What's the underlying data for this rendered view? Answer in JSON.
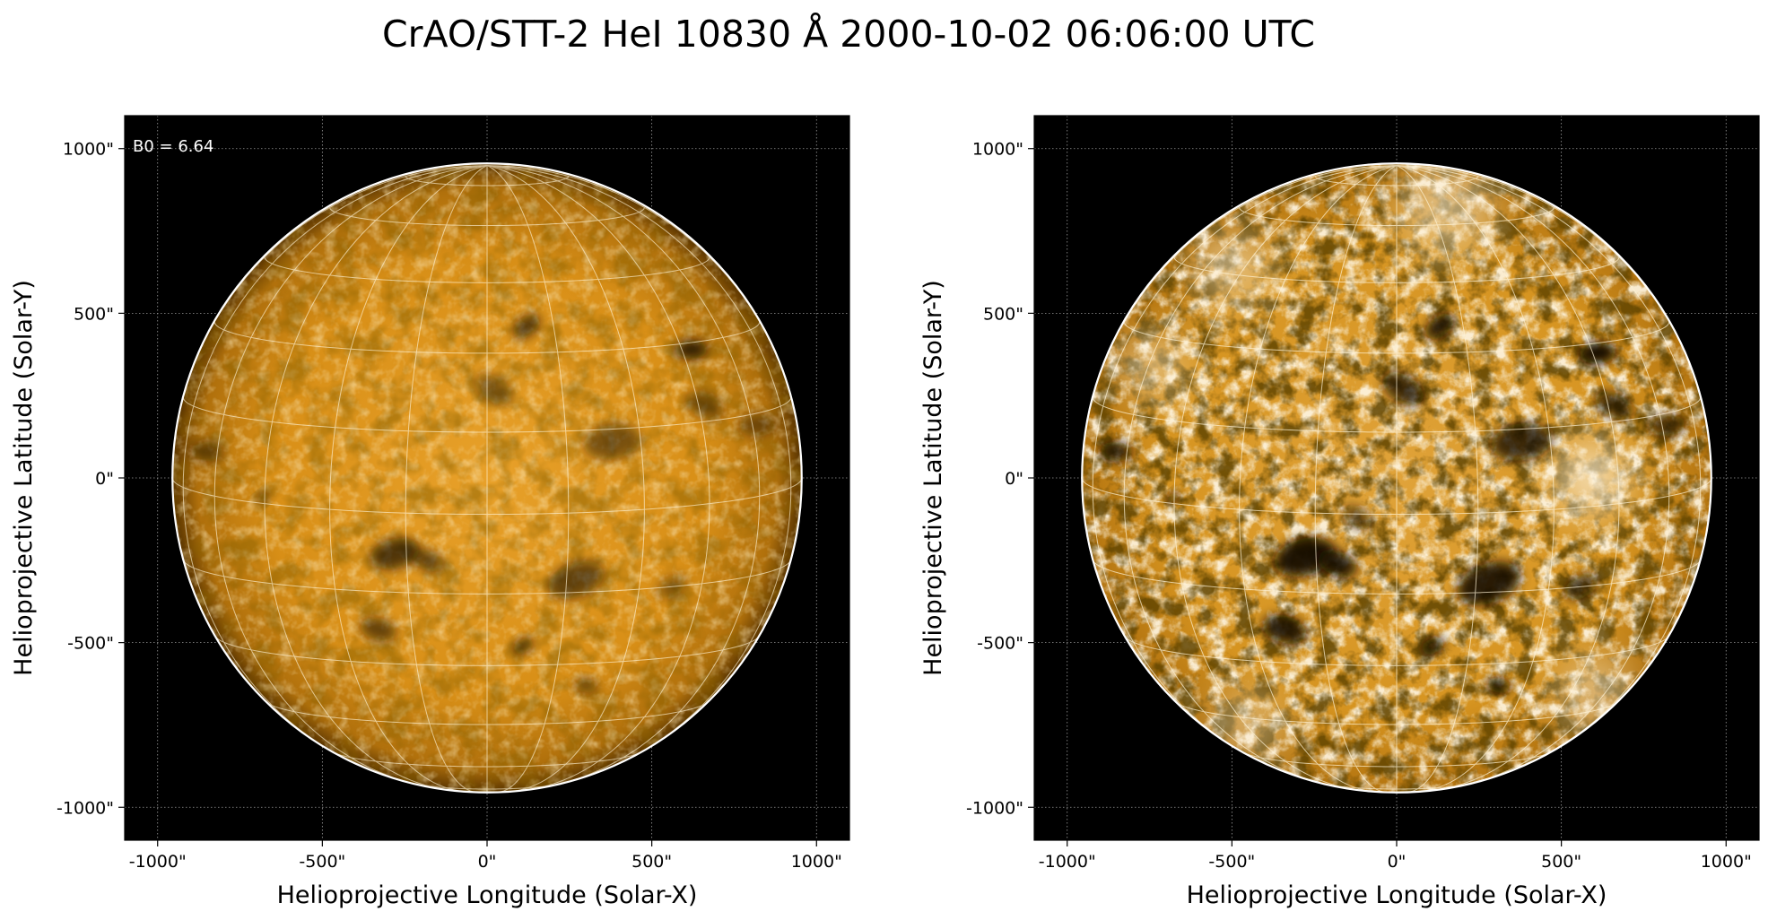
{
  "figure": {
    "title": "CrAO/STT-2 HeI 10830 Å 2000-10-02 06:06:00 UTC",
    "colors": {
      "background": "#000000",
      "disk": "#d18a12",
      "limb": "#ffffff",
      "grid": "#fff3d6"
    }
  },
  "panels": [
    {
      "id": "left",
      "annotation": "B0 = 6.64",
      "xlabel": "Helioprojective Longitude (Solar-X)",
      "ylabel": "Helioprojective Latitude (Solar-Y)",
      "xlim": [
        -1100,
        1100
      ],
      "ylim": [
        -1100,
        1100
      ],
      "xticks": [
        -1000,
        -500,
        0,
        500,
        1000
      ],
      "yticks": [
        -1000,
        -500,
        0,
        500,
        1000
      ],
      "xticklabels": [
        "-1000\"",
        "-500\"",
        "0\"",
        "500\"",
        "1000\""
      ],
      "yticklabels": [
        "-1000\"",
        "-500\"",
        "0\"",
        "500\"",
        "1000\""
      ],
      "solar_radius_arcsec": 955,
      "style": "original",
      "features": [
        {
          "x": 120,
          "y": 460,
          "r": 38,
          "a": 0.7
        },
        {
          "x": 620,
          "y": 390,
          "r": 40,
          "a": 0.85
        },
        {
          "x": 20,
          "y": 270,
          "r": 50,
          "a": 0.45
        },
        {
          "x": 380,
          "y": 110,
          "r": 70,
          "a": 0.5
        },
        {
          "x": 660,
          "y": 220,
          "r": 50,
          "a": 0.45
        },
        {
          "x": -280,
          "y": -230,
          "r": 60,
          "a": 0.7
        },
        {
          "x": -180,
          "y": -250,
          "r": 40,
          "a": 0.6
        },
        {
          "x": 270,
          "y": -310,
          "r": 70,
          "a": 0.6
        },
        {
          "x": -330,
          "y": -460,
          "r": 45,
          "a": 0.6
        },
        {
          "x": 110,
          "y": -510,
          "r": 28,
          "a": 0.7
        },
        {
          "x": 300,
          "y": -630,
          "r": 28,
          "a": 0.6
        },
        {
          "x": 560,
          "y": -330,
          "r": 40,
          "a": 0.4
        },
        {
          "x": -850,
          "y": 80,
          "r": 40,
          "a": 0.5
        },
        {
          "x": -680,
          "y": -60,
          "r": 20,
          "a": 0.5
        },
        {
          "x": 820,
          "y": 160,
          "r": 45,
          "a": 0.45
        }
      ]
    },
    {
      "id": "right",
      "annotation": "",
      "xlabel": "Helioprojective Longitude (Solar-X)",
      "ylabel": "Helioprojective Latitude (Solar-Y)",
      "xlim": [
        -1100,
        1100
      ],
      "ylim": [
        -1100,
        1100
      ],
      "xticks": [
        -1000,
        -500,
        0,
        500,
        1000
      ],
      "yticks": [
        -1000,
        -500,
        0,
        500,
        1000
      ],
      "xticklabels": [
        "-1000\"",
        "-500\"",
        "0\"",
        "500\"",
        "1000\""
      ],
      "yticklabels": [
        "-1000\"",
        "-500\"",
        "0\"",
        "500\"",
        "1000\""
      ],
      "solar_radius_arcsec": 955,
      "style": "enhanced",
      "features": [
        {
          "x": 130,
          "y": 460,
          "r": 40,
          "a": 0.95
        },
        {
          "x": 610,
          "y": 380,
          "r": 45,
          "a": 1.0
        },
        {
          "x": 20,
          "y": 270,
          "r": 55,
          "a": 0.8
        },
        {
          "x": 380,
          "y": 110,
          "r": 75,
          "a": 0.8
        },
        {
          "x": 660,
          "y": 220,
          "r": 50,
          "a": 0.7
        },
        {
          "x": -280,
          "y": -240,
          "r": 75,
          "a": 0.95
        },
        {
          "x": -180,
          "y": -260,
          "r": 50,
          "a": 0.9
        },
        {
          "x": 280,
          "y": -320,
          "r": 80,
          "a": 0.9
        },
        {
          "x": -340,
          "y": -460,
          "r": 55,
          "a": 0.9
        },
        {
          "x": 110,
          "y": -510,
          "r": 30,
          "a": 0.95
        },
        {
          "x": 310,
          "y": -630,
          "r": 30,
          "a": 0.9
        },
        {
          "x": 560,
          "y": -330,
          "r": 45,
          "a": 0.7
        },
        {
          "x": -850,
          "y": 80,
          "r": 40,
          "a": 0.8
        },
        {
          "x": -680,
          "y": -60,
          "r": 20,
          "a": 0.8
        },
        {
          "x": 820,
          "y": 160,
          "r": 45,
          "a": 0.7
        },
        {
          "x": -120,
          "y": -120,
          "r": 40,
          "a": 0.6
        }
      ],
      "bright_regions": [
        {
          "x": 590,
          "y": 0,
          "r": 110,
          "a": 0.75
        },
        {
          "x": -500,
          "y": 640,
          "r": 110,
          "a": 0.5
        },
        {
          "x": 150,
          "y": 820,
          "r": 140,
          "a": 0.5
        },
        {
          "x": -740,
          "y": 340,
          "r": 90,
          "a": 0.55
        },
        {
          "x": 600,
          "y": -650,
          "r": 110,
          "a": 0.5
        },
        {
          "x": -450,
          "y": -750,
          "r": 110,
          "a": 0.4
        }
      ]
    }
  ]
}
